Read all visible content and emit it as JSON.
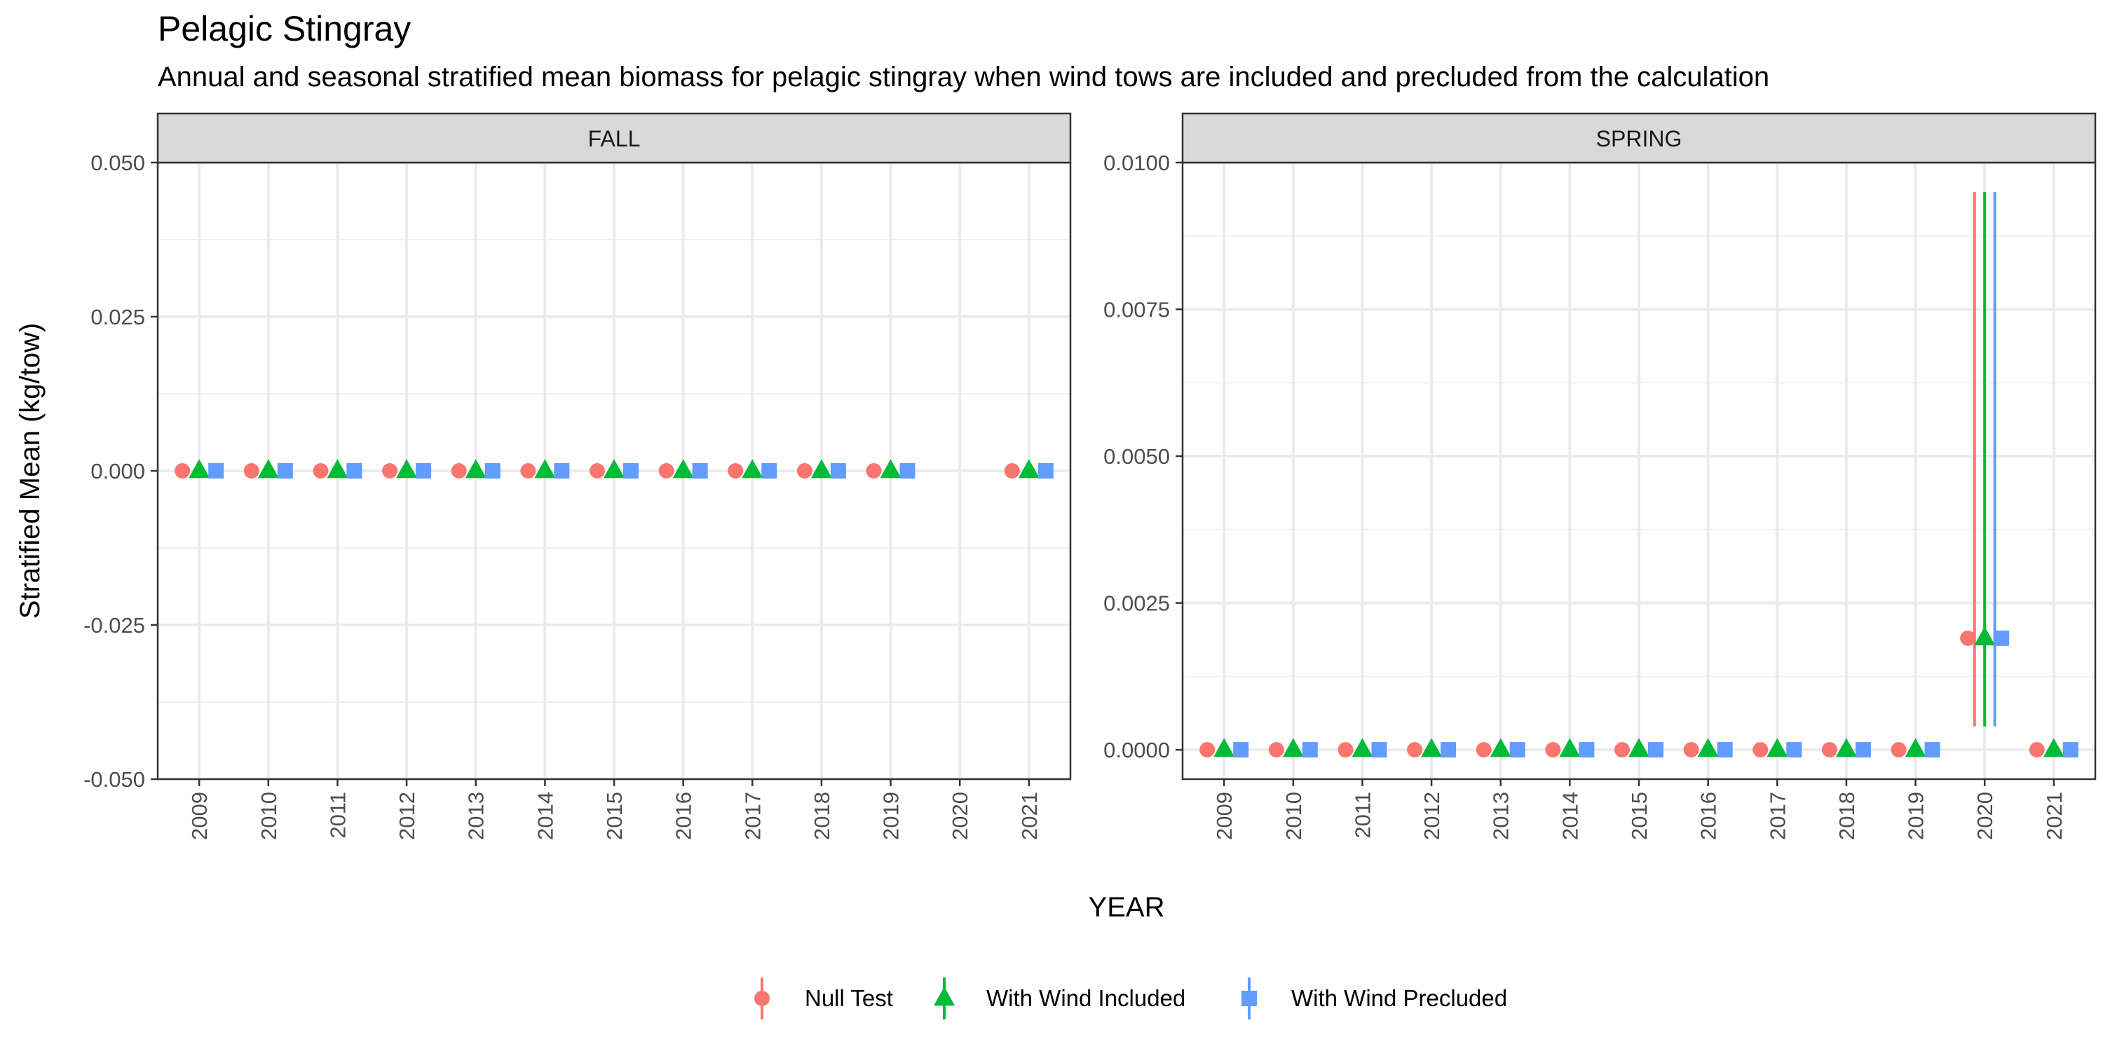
{
  "chart_data": {
    "type": "scatter",
    "title": "Pelagic Stingray",
    "subtitle": "Annual and seasonal stratified mean biomass for pelagic stingray when wind tows are included and precluded from the calculation",
    "xlabel": "YEAR",
    "ylabel": "Stratified Mean (kg/tow)",
    "legend_position": "bottom",
    "grid": true,
    "series_styles": [
      {
        "name": "Null Test",
        "color": "#F8766D",
        "shape": "circle"
      },
      {
        "name": "With Wind Included",
        "color": "#00BA38",
        "shape": "triangle"
      },
      {
        "name": "With Wind Precluded",
        "color": "#619CFF",
        "shape": "square"
      }
    ],
    "panels": [
      {
        "label": "FALL",
        "categories": [
          "2009",
          "2010",
          "2011",
          "2012",
          "2013",
          "2014",
          "2015",
          "2016",
          "2017",
          "2018",
          "2019",
          "2020",
          "2021"
        ],
        "ylim": [
          -0.05,
          0.05
        ],
        "yticks": [
          "-0.050",
          "-0.025",
          "0.000",
          "0.025",
          "0.050"
        ],
        "ytick_values": [
          -0.05,
          -0.025,
          0,
          0.025,
          0.05
        ],
        "series": [
          {
            "name": "Null Test",
            "values": [
              0,
              0,
              0,
              0,
              0,
              0,
              0,
              0,
              0,
              0,
              0,
              null,
              0
            ]
          },
          {
            "name": "With Wind Included",
            "values": [
              0,
              0,
              0,
              0,
              0,
              0,
              0,
              0,
              0,
              0,
              0,
              null,
              0
            ]
          },
          {
            "name": "With Wind Precluded",
            "values": [
              0,
              0,
              0,
              0,
              0,
              0,
              0,
              0,
              0,
              0,
              0,
              null,
              0
            ]
          }
        ],
        "error_bars": []
      },
      {
        "label": "SPRING",
        "categories": [
          "2009",
          "2010",
          "2011",
          "2012",
          "2013",
          "2014",
          "2015",
          "2016",
          "2017",
          "2018",
          "2019",
          "2020",
          "2021"
        ],
        "ylim": [
          -0.0005,
          0.01
        ],
        "yticks": [
          "0.0000",
          "0.0025",
          "0.0050",
          "0.0075",
          "0.0100"
        ],
        "ytick_values": [
          0,
          0.0025,
          0.005,
          0.0075,
          0.01
        ],
        "series": [
          {
            "name": "Null Test",
            "values": [
              0,
              0,
              0,
              0,
              0,
              0,
              0,
              0,
              0,
              0,
              0,
              0.0019,
              0
            ]
          },
          {
            "name": "With Wind Included",
            "values": [
              0,
              0,
              0,
              0,
              0,
              0,
              0,
              0,
              0,
              0,
              0,
              0.0019,
              0
            ]
          },
          {
            "name": "With Wind Precluded",
            "values": [
              0,
              0,
              0,
              0,
              0,
              0,
              0,
              0,
              0,
              0,
              0,
              0.0019,
              0
            ]
          }
        ],
        "error_bars": [
          {
            "series": "Null Test",
            "category": "2020",
            "low": 0.0004,
            "high": 0.0095
          },
          {
            "series": "With Wind Included",
            "category": "2020",
            "low": 0.0004,
            "high": 0.0095
          },
          {
            "series": "With Wind Precluded",
            "category": "2020",
            "low": 0.0004,
            "high": 0.0095
          }
        ]
      }
    ]
  }
}
